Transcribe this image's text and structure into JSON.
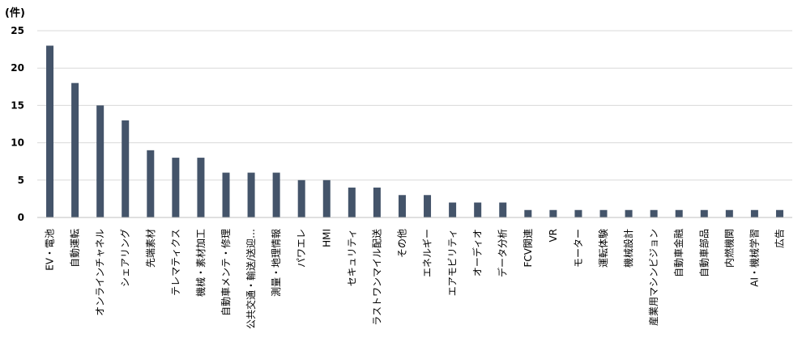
{
  "chart_data": {
    "type": "bar",
    "unit_label": "(件)",
    "categories": [
      "EV・電池",
      "自動運転",
      "オンラインチャネル",
      "シェアリング",
      "先端素材",
      "テレマティクス",
      "機械・素材加工",
      "自動車メンテ・修理",
      "公共交通・輸送/送迎…",
      "測量・地理情報",
      "パワエレ",
      "HMI",
      "セキュリティ",
      "ラストワンマイル配送",
      "その他",
      "エネルギー",
      "エアモビリティ",
      "オーディオ",
      "データ分析",
      "FCV関連",
      "VR",
      "モーター",
      "運転体験",
      "機械設計",
      "産業用マシンビジョン",
      "自動車金融",
      "自動車部品",
      "内燃機関",
      "AI・機械学習",
      "広告"
    ],
    "values": [
      23,
      18,
      15,
      13,
      9,
      8,
      8,
      6,
      6,
      6,
      5,
      5,
      4,
      4,
      3,
      3,
      2,
      2,
      2,
      1,
      1,
      1,
      1,
      1,
      1,
      1,
      1,
      1,
      1,
      1
    ],
    "ylim": [
      0,
      25
    ],
    "yticks": [
      0,
      5,
      10,
      15,
      20,
      25
    ],
    "grid": true,
    "legend": "none",
    "bar_color": "#44546a",
    "grid_color": "#d9d9d9"
  }
}
